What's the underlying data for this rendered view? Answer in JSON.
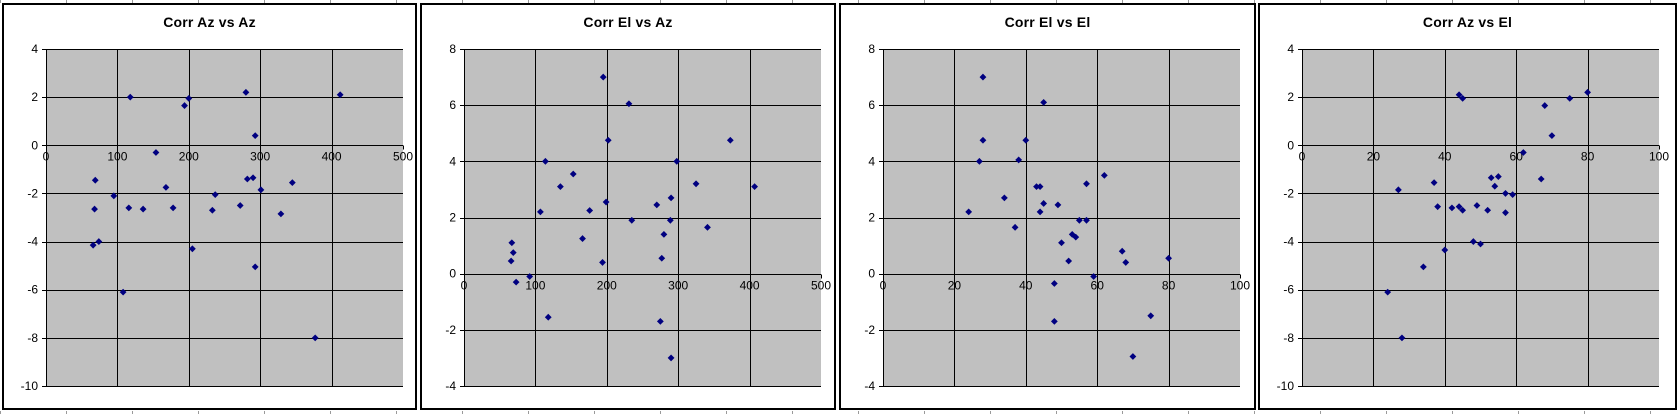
{
  "window": {
    "background": "#ffffff"
  },
  "colors": {
    "plot_bg": "#c0c0c0",
    "grid": "#000000",
    "marker": "#000080",
    "chart_border": "#000000",
    "axis_label": "#000000",
    "title": "#000000"
  },
  "chart_data": [
    {
      "type": "scatter",
      "title": "Corr Az vs Az",
      "xlabel": "",
      "ylabel": "",
      "xlim": [
        0,
        500
      ],
      "xticks": [
        0,
        100,
        200,
        300,
        400,
        500
      ],
      "ylim": [
        -10,
        4
      ],
      "yticks": [
        4,
        2,
        0,
        -2,
        -4,
        -6,
        -8,
        -10
      ],
      "grid": true,
      "legend": null,
      "marker": "diamond",
      "points": [
        [
          66,
          -4.15
        ],
        [
          68,
          -2.65
        ],
        [
          69,
          -1.45
        ],
        [
          74,
          -4.0
        ],
        [
          95,
          -2.1
        ],
        [
          108,
          -6.1
        ],
        [
          116,
          -2.6
        ],
        [
          118,
          2.0
        ],
        [
          136,
          -2.65
        ],
        [
          154,
          -0.3
        ],
        [
          168,
          -1.75
        ],
        [
          178,
          -2.6
        ],
        [
          194,
          1.65
        ],
        [
          200,
          1.95
        ],
        [
          205,
          -4.3
        ],
        [
          233,
          -2.7
        ],
        [
          237,
          -2.05
        ],
        [
          272,
          -2.5
        ],
        [
          280,
          2.2
        ],
        [
          282,
          -1.4
        ],
        [
          290,
          -1.35
        ],
        [
          293,
          0.4
        ],
        [
          293,
          -5.05
        ],
        [
          301,
          -1.85
        ],
        [
          329,
          -2.85
        ],
        [
          345,
          -1.55
        ],
        [
          377,
          -8.0
        ],
        [
          412,
          2.1
        ]
      ]
    },
    {
      "type": "scatter",
      "title": "Corr El vs Az",
      "xlabel": "",
      "ylabel": "",
      "xlim": [
        0,
        500
      ],
      "xticks": [
        0,
        100,
        200,
        300,
        400,
        500
      ],
      "ylim": [
        -4,
        8
      ],
      "yticks": [
        8,
        6,
        4,
        2,
        0,
        -2,
        -4
      ],
      "grid": true,
      "legend": null,
      "marker": "diamond",
      "points": [
        [
          66,
          0.45
        ],
        [
          67,
          1.1
        ],
        [
          69,
          0.75
        ],
        [
          73,
          -0.3
        ],
        [
          92,
          -0.1
        ],
        [
          107,
          2.2
        ],
        [
          114,
          4.0
        ],
        [
          118,
          -1.55
        ],
        [
          135,
          3.1
        ],
        [
          153,
          3.55
        ],
        [
          166,
          1.25
        ],
        [
          176,
          2.25
        ],
        [
          194,
          0.4
        ],
        [
          195,
          7.0
        ],
        [
          199,
          2.55
        ],
        [
          202,
          4.75
        ],
        [
          231,
          6.05
        ],
        [
          235,
          1.9
        ],
        [
          270,
          2.45
        ],
        [
          275,
          -1.7
        ],
        [
          277,
          0.55
        ],
        [
          280,
          1.4
        ],
        [
          289,
          1.9
        ],
        [
          290,
          2.7
        ],
        [
          290,
          -3.0
        ],
        [
          298,
          4.0
        ],
        [
          325,
          3.2
        ],
        [
          341,
          1.65
        ],
        [
          373,
          4.75
        ],
        [
          407,
          3.1
        ]
      ]
    },
    {
      "type": "scatter",
      "title": "Corr El vs El",
      "xlabel": "",
      "ylabel": "",
      "xlim": [
        0,
        100
      ],
      "xticks": [
        0,
        20,
        40,
        60,
        80,
        100
      ],
      "ylim": [
        -4,
        8
      ],
      "yticks": [
        8,
        6,
        4,
        2,
        0,
        -2,
        -4
      ],
      "grid": true,
      "legend": null,
      "marker": "diamond",
      "points": [
        [
          24,
          2.2
        ],
        [
          27,
          4.0
        ],
        [
          28,
          7.0
        ],
        [
          28,
          4.75
        ],
        [
          34,
          2.7
        ],
        [
          37,
          1.65
        ],
        [
          38,
          4.05
        ],
        [
          40,
          4.75
        ],
        [
          43,
          3.1
        ],
        [
          44,
          3.1
        ],
        [
          44,
          2.2
        ],
        [
          45,
          6.1
        ],
        [
          45,
          2.5
        ],
        [
          48,
          -0.35
        ],
        [
          48,
          -1.7
        ],
        [
          49,
          2.45
        ],
        [
          50,
          1.1
        ],
        [
          52,
          0.45
        ],
        [
          53,
          1.4
        ],
        [
          54,
          1.3
        ],
        [
          55,
          1.9
        ],
        [
          57,
          1.9
        ],
        [
          57,
          3.2
        ],
        [
          59,
          -0.1
        ],
        [
          62,
          3.5
        ],
        [
          67,
          0.8
        ],
        [
          68,
          0.4
        ],
        [
          70,
          -2.95
        ],
        [
          75,
          -1.5
        ],
        [
          80,
          0.55
        ]
      ]
    },
    {
      "type": "scatter",
      "title": "Corr Az vs El",
      "xlabel": "",
      "ylabel": "",
      "xlim": [
        0,
        100
      ],
      "xticks": [
        0,
        20,
        40,
        60,
        80,
        100
      ],
      "ylim": [
        -10,
        4
      ],
      "yticks": [
        4,
        2,
        0,
        -2,
        -4,
        -6,
        -8,
        -10
      ],
      "grid": true,
      "legend": null,
      "marker": "diamond",
      "points": [
        [
          24,
          -6.1
        ],
        [
          27,
          -1.85
        ],
        [
          28,
          -8.0
        ],
        [
          34,
          -5.05
        ],
        [
          37,
          -1.55
        ],
        [
          38,
          -2.55
        ],
        [
          40,
          -4.35
        ],
        [
          42,
          -2.6
        ],
        [
          44,
          2.1
        ],
        [
          44,
          -2.55
        ],
        [
          45,
          1.95
        ],
        [
          45,
          -2.7
        ],
        [
          48,
          -4.0
        ],
        [
          49,
          -2.5
        ],
        [
          50,
          -4.1
        ],
        [
          52,
          -2.7
        ],
        [
          53,
          -1.35
        ],
        [
          54,
          -1.7
        ],
        [
          55,
          -1.3
        ],
        [
          57,
          -2.0
        ],
        [
          57,
          -2.8
        ],
        [
          59,
          -2.05
        ],
        [
          62,
          -0.3
        ],
        [
          67,
          -1.4
        ],
        [
          68,
          1.65
        ],
        [
          70,
          0.4
        ],
        [
          75,
          1.95
        ],
        [
          80,
          2.2
        ]
      ]
    }
  ]
}
